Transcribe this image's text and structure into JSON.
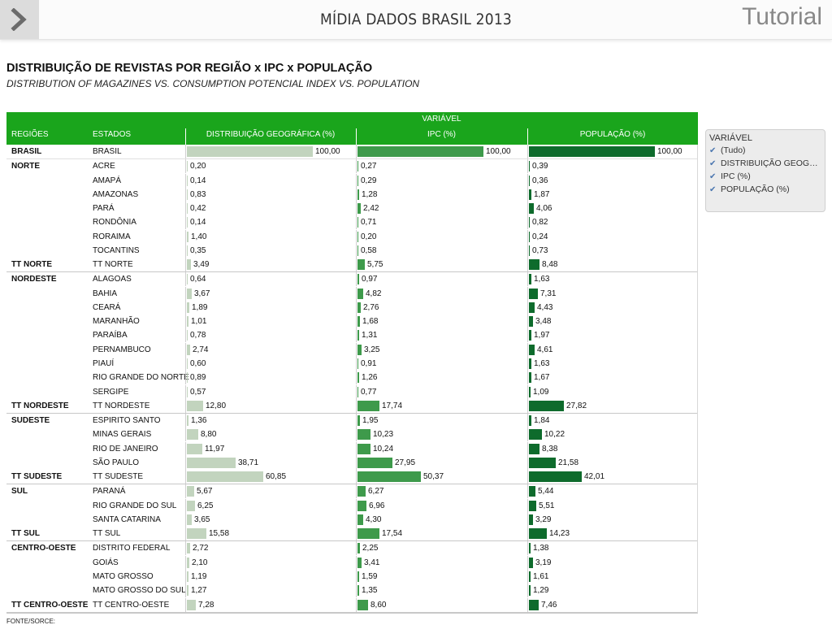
{
  "header": {
    "app_title": "MÍDIA DADOS BRASIL 2013",
    "tutorial_label": "Tutorial",
    "back_icon": "chevron-right-icon"
  },
  "page": {
    "title": "DISTRIBUIÇÃO DE REVISTAS POR REGIÃO x IPC x POPULAÇÃO",
    "subtitle": "DISTRIBUTION OF MAGAZINES VS. CONSUMPTION POTENCIAL INDEX VS. POPULATION"
  },
  "table": {
    "variavel_label": "VARIÁVEL",
    "headers": {
      "region": "REGIÕES",
      "state": "ESTADOS",
      "distribuicao": "DISTRIBUIÇÃO GEOGRÁFICA (%)",
      "ipc": "IPC (%)",
      "populacao": "POPULAÇÃO (%)"
    },
    "colors": {
      "header_bg": "#1aa51c",
      "distribuicao": "#c2d4be",
      "ipc": "#3e9a4b",
      "populacao": "#0e6b2c"
    },
    "rows": [
      {
        "region": "BRASIL",
        "state": "BRASIL",
        "d": "100,00",
        "i": "100,00",
        "p": "100,00",
        "total": false,
        "brasil": true
      },
      {
        "region": "NORTE",
        "state": "ACRE",
        "d": "0,20",
        "i": "0,27",
        "p": "0,39"
      },
      {
        "region": "",
        "state": "AMAPÁ",
        "d": "0,14",
        "i": "0,29",
        "p": "0,36"
      },
      {
        "region": "",
        "state": "AMAZONAS",
        "d": "0,83",
        "i": "1,28",
        "p": "1,87"
      },
      {
        "region": "",
        "state": "PARÁ",
        "d": "0,42",
        "i": "2,42",
        "p": "4,06"
      },
      {
        "region": "",
        "state": "RONDÔNIA",
        "d": "0,14",
        "i": "0,71",
        "p": "0,82"
      },
      {
        "region": "",
        "state": "RORAIMA",
        "d": "1,40",
        "i": "0,20",
        "p": "0,24"
      },
      {
        "region": "",
        "state": "TOCANTINS",
        "d": "0,35",
        "i": "0,58",
        "p": "0,73"
      },
      {
        "region": "TT NORTE",
        "state": "TT NORTE",
        "d": "3,49",
        "i": "5,75",
        "p": "8,48",
        "total": true
      },
      {
        "region": "NORDESTE",
        "state": "ALAGOAS",
        "d": "0,64",
        "i": "0,97",
        "p": "1,63"
      },
      {
        "region": "",
        "state": "BAHIA",
        "d": "3,67",
        "i": "4,82",
        "p": "7,31"
      },
      {
        "region": "",
        "state": "CEARÁ",
        "d": "1,89",
        "i": "2,76",
        "p": "4,43"
      },
      {
        "region": "",
        "state": "MARANHÃO",
        "d": "1,01",
        "i": "1,68",
        "p": "3,48"
      },
      {
        "region": "",
        "state": "PARAÍBA",
        "d": "0,78",
        "i": "1,31",
        "p": "1,97"
      },
      {
        "region": "",
        "state": "PERNAMBUCO",
        "d": "2,74",
        "i": "3,25",
        "p": "4,61"
      },
      {
        "region": "",
        "state": "PIAUÍ",
        "d": "0,60",
        "i": "0,91",
        "p": "1,63"
      },
      {
        "region": "",
        "state": "RIO GRANDE DO NORTE",
        "d": "0,89",
        "i": "1,26",
        "p": "1,67"
      },
      {
        "region": "",
        "state": "SERGIPE",
        "d": "0,57",
        "i": "0,77",
        "p": "1,09"
      },
      {
        "region": "TT NORDESTE",
        "state": "TT NORDESTE",
        "d": "12,80",
        "i": "17,74",
        "p": "27,82",
        "total": true
      },
      {
        "region": "SUDESTE",
        "state": "ESPIRITO SANTO",
        "d": "1,36",
        "i": "1,95",
        "p": "1,84"
      },
      {
        "region": "",
        "state": "MINAS GERAIS",
        "d": "8,80",
        "i": "10,23",
        "p": "10,22"
      },
      {
        "region": "",
        "state": "RIO DE JANEIRO",
        "d": "11,97",
        "i": "10,24",
        "p": "8,38"
      },
      {
        "region": "",
        "state": "SÃO PAULO",
        "d": "38,71",
        "i": "27,95",
        "p": "21,58"
      },
      {
        "region": "TT SUDESTE",
        "state": "TT SUDESTE",
        "d": "60,85",
        "i": "50,37",
        "p": "42,01",
        "total": true
      },
      {
        "region": "SUL",
        "state": "PARANÁ",
        "d": "5,67",
        "i": "6,27",
        "p": "5,44"
      },
      {
        "region": "",
        "state": "RIO GRANDE DO SUL",
        "d": "6,25",
        "i": "6,96",
        "p": "5,51"
      },
      {
        "region": "",
        "state": "SANTA CATARINA",
        "d": "3,65",
        "i": "4,30",
        "p": "3,29"
      },
      {
        "region": "TT SUL",
        "state": "TT SUL",
        "d": "15,58",
        "i": "17,54",
        "p": "14,23",
        "total": true
      },
      {
        "region": "CENTRO-OESTE",
        "state": "DISTRITO FEDERAL",
        "d": "2,72",
        "i": "2,25",
        "p": "1,38"
      },
      {
        "region": "",
        "state": "GOIÁS",
        "d": "2,10",
        "i": "3,41",
        "p": "3,19"
      },
      {
        "region": "",
        "state": "MATO GROSSO",
        "d": "1,19",
        "i": "1,59",
        "p": "1,61"
      },
      {
        "region": "",
        "state": "MATO GROSSO DO SUL",
        "d": "1,27",
        "i": "1,35",
        "p": "1,29"
      },
      {
        "region": "TT CENTRO-OESTE",
        "state": "TT CENTRO-OESTE",
        "d": "7,28",
        "i": "8,60",
        "p": "7,46",
        "total": true
      }
    ]
  },
  "filter": {
    "title": "VARIÁVEL",
    "items": [
      {
        "label": "(Tudo)",
        "checked": true
      },
      {
        "label": "DISTRIBUIÇÃO GEOGRÁFICA (%)",
        "checked": true
      },
      {
        "label": "IPC (%)",
        "checked": true
      },
      {
        "label": "POPULAÇÃO (%)",
        "checked": true
      }
    ],
    "check_icon": "checkmark-icon"
  },
  "footer": {
    "source_label": "FONTE/SORCE:"
  }
}
